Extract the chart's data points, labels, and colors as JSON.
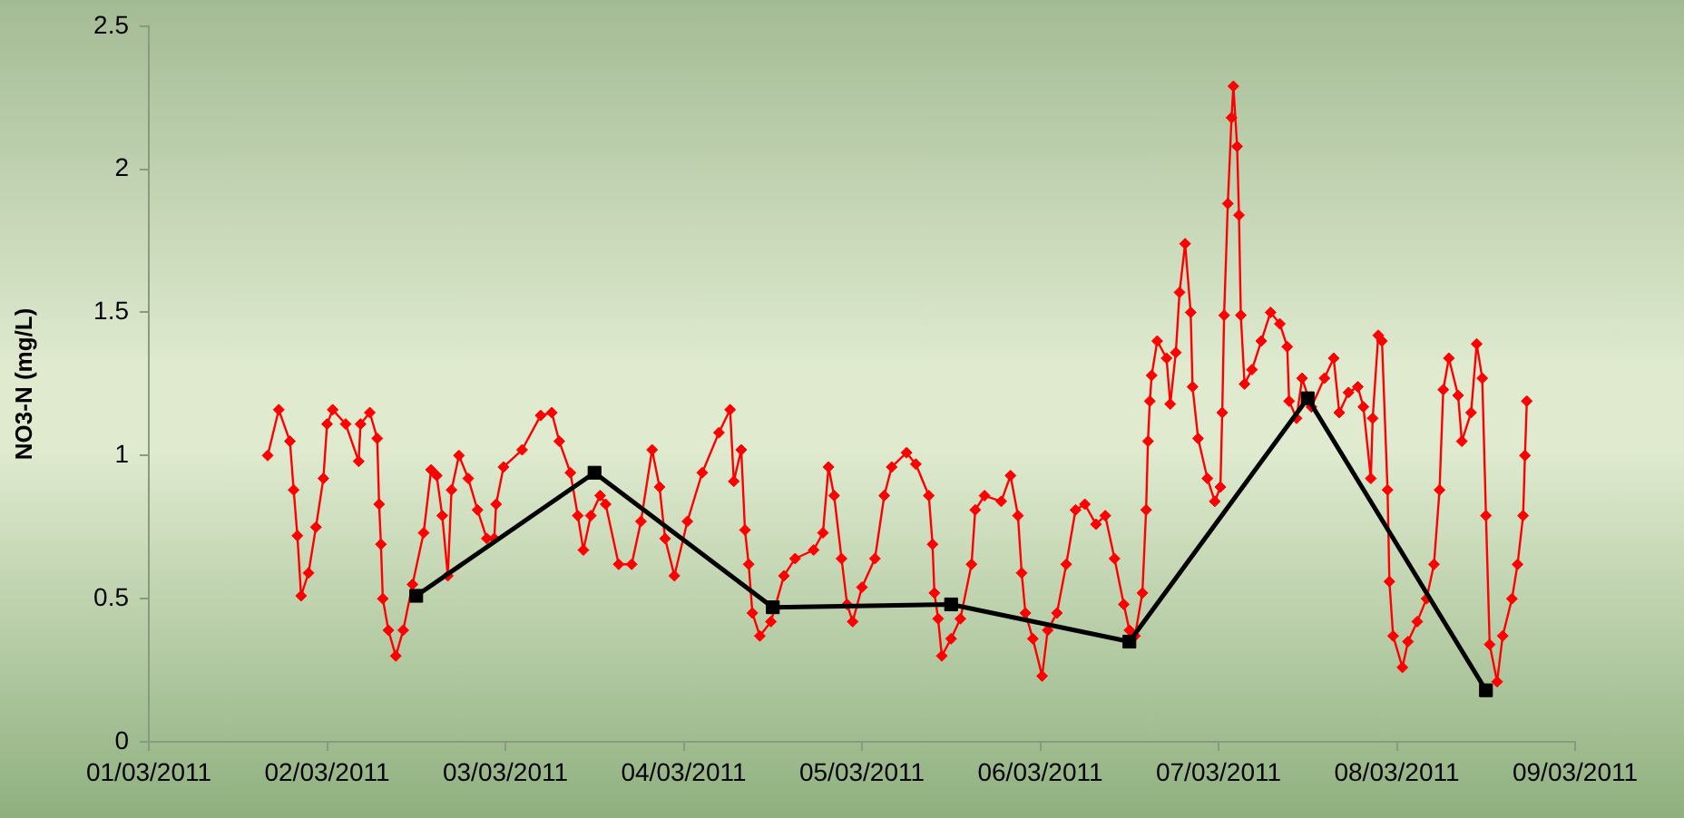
{
  "chart_data": {
    "type": "line",
    "ylabel": "NO3-N (mg/L)",
    "ylim": [
      0,
      2.5
    ],
    "yticks": [
      0,
      0.5,
      1,
      1.5,
      2,
      2.5
    ],
    "xlim": [
      "2011-03-01",
      "2011-03-09"
    ],
    "xticks": [
      {
        "value": "2011-03-01",
        "label": "01/03/2011"
      },
      {
        "value": "2011-03-02",
        "label": "02/03/2011"
      },
      {
        "value": "2011-03-03",
        "label": "03/03/2011"
      },
      {
        "value": "2011-03-04",
        "label": "04/03/2011"
      },
      {
        "value": "2011-03-05",
        "label": "05/03/2011"
      },
      {
        "value": "2011-03-06",
        "label": "06/03/2011"
      },
      {
        "value": "2011-03-07",
        "label": "07/03/2011"
      },
      {
        "value": "2011-03-08",
        "label": "08/03/2011"
      },
      {
        "value": "2011-03-09",
        "label": "09/03/2011"
      }
    ],
    "grid": false,
    "legend": false,
    "line_style": "solid",
    "series": [
      {
        "color": "#ff0000",
        "marker": "diamond",
        "x": [
          "2011-03-01T16:00",
          "2011-03-01T17:30",
          "2011-03-01T19:00",
          "2011-03-01T19:30",
          "2011-03-01T20:00",
          "2011-03-01T20:30",
          "2011-03-01T21:30",
          "2011-03-01T22:30",
          "2011-03-01T23:30",
          "2011-03-02T00:00",
          "2011-03-02T00:45",
          "2011-03-02T02:30",
          "2011-03-02T04:15",
          "2011-03-02T04:30",
          "2011-03-02T05:45",
          "2011-03-02T06:45",
          "2011-03-02T07:00",
          "2011-03-02T07:15",
          "2011-03-02T07:30",
          "2011-03-02T08:15",
          "2011-03-02T09:15",
          "2011-03-02T10:15",
          "2011-03-02T11:30",
          "2011-03-02T13:00",
          "2011-03-02T14:00",
          "2011-03-02T14:45",
          "2011-03-02T15:30",
          "2011-03-02T16:15",
          "2011-03-02T16:45",
          "2011-03-02T17:45",
          "2011-03-02T19:00",
          "2011-03-02T20:15",
          "2011-03-02T21:30",
          "2011-03-02T22:30",
          "2011-03-02T22:45",
          "2011-03-02T23:45",
          "2011-03-03T02:15",
          "2011-03-03T04:45",
          "2011-03-03T06:15",
          "2011-03-03T07:15",
          "2011-03-03T08:45",
          "2011-03-03T09:45",
          "2011-03-03T10:30",
          "2011-03-03T11:30",
          "2011-03-03T12:45",
          "2011-03-03T13:30",
          "2011-03-03T15:15",
          "2011-03-03T17:00",
          "2011-03-03T18:15",
          "2011-03-03T19:45",
          "2011-03-03T20:45",
          "2011-03-03T21:30",
          "2011-03-03T22:45",
          "2011-03-04T00:30",
          "2011-03-04T02:30",
          "2011-03-04T04:45",
          "2011-03-04T06:15",
          "2011-03-04T06:45",
          "2011-03-04T07:45",
          "2011-03-04T08:15",
          "2011-03-04T08:45",
          "2011-03-04T09:15",
          "2011-03-04T10:15",
          "2011-03-04T11:45",
          "2011-03-04T13:30",
          "2011-03-04T15:00",
          "2011-03-04T17:30",
          "2011-03-04T18:45",
          "2011-03-04T19:30",
          "2011-03-04T20:15",
          "2011-03-04T21:15",
          "2011-03-04T22:00",
          "2011-03-04T22:45",
          "2011-03-05T00:00",
          "2011-03-05T01:45",
          "2011-03-05T03:00",
          "2011-03-05T04:00",
          "2011-03-05T06:00",
          "2011-03-05T07:15",
          "2011-03-05T09:00",
          "2011-03-05T09:30",
          "2011-03-05T09:45",
          "2011-03-05T10:15",
          "2011-03-05T10:45",
          "2011-03-05T12:00",
          "2011-03-05T13:15",
          "2011-03-05T14:45",
          "2011-03-05T15:15",
          "2011-03-05T16:30",
          "2011-03-05T18:45",
          "2011-03-05T20:00",
          "2011-03-05T21:00",
          "2011-03-05T21:30",
          "2011-03-05T22:00",
          "2011-03-05T23:00",
          "2011-03-06T00:15",
          "2011-03-06T01:00",
          "2011-03-06T02:15",
          "2011-03-06T03:30",
          "2011-03-06T04:45",
          "2011-03-06T06:00",
          "2011-03-06T07:30",
          "2011-03-06T08:45",
          "2011-03-06T10:00",
          "2011-03-06T11:15",
          "2011-03-06T12:00",
          "2011-03-06T12:45",
          "2011-03-06T13:45",
          "2011-03-06T14:15",
          "2011-03-06T14:30",
          "2011-03-06T14:45",
          "2011-03-06T15:00",
          "2011-03-06T15:45",
          "2011-03-06T17:00",
          "2011-03-06T17:30",
          "2011-03-06T18:15",
          "2011-03-06T18:45",
          "2011-03-06T19:30",
          "2011-03-06T20:15",
          "2011-03-06T20:30",
          "2011-03-06T21:15",
          "2011-03-06T22:30",
          "2011-03-06T23:30",
          "2011-03-07T00:15",
          "2011-03-07T00:30",
          "2011-03-07T00:45",
          "2011-03-07T01:15",
          "2011-03-07T01:45",
          "2011-03-07T02:00",
          "2011-03-07T02:30",
          "2011-03-07T02:45",
          "2011-03-07T03:00",
          "2011-03-07T03:30",
          "2011-03-07T04:30",
          "2011-03-07T05:45",
          "2011-03-07T07:00",
          "2011-03-07T08:15",
          "2011-03-07T09:15",
          "2011-03-07T09:30",
          "2011-03-07T10:30",
          "2011-03-07T11:15",
          "2011-03-07T12:30",
          "2011-03-07T14:15",
          "2011-03-07T15:30",
          "2011-03-07T16:15",
          "2011-03-07T17:30",
          "2011-03-07T18:45",
          "2011-03-07T19:30",
          "2011-03-07T20:30",
          "2011-03-07T20:45",
          "2011-03-07T21:30",
          "2011-03-07T22:00",
          "2011-03-07T22:45",
          "2011-03-07T23:00",
          "2011-03-07T23:30",
          "2011-03-08T00:45",
          "2011-03-08T01:30",
          "2011-03-08T02:45",
          "2011-03-08T04:00",
          "2011-03-08T05:00",
          "2011-03-08T05:45",
          "2011-03-08T06:15",
          "2011-03-08T07:00",
          "2011-03-08T08:15",
          "2011-03-08T08:45",
          "2011-03-08T10:00",
          "2011-03-08T10:45",
          "2011-03-08T11:30",
          "2011-03-08T12:00",
          "2011-03-08T12:30",
          "2011-03-08T13:30",
          "2011-03-08T14:15",
          "2011-03-08T15:30",
          "2011-03-08T16:15",
          "2011-03-08T17:00",
          "2011-03-08T17:15",
          "2011-03-08T17:30"
        ],
        "values": [
          1.0,
          1.16,
          1.05,
          0.88,
          0.72,
          0.51,
          0.59,
          0.75,
          0.92,
          1.11,
          1.16,
          1.11,
          0.98,
          1.11,
          1.15,
          1.06,
          0.83,
          0.69,
          0.5,
          0.39,
          0.3,
          0.39,
          0.55,
          0.73,
          0.95,
          0.93,
          0.79,
          0.58,
          0.88,
          1.0,
          0.92,
          0.81,
          0.71,
          0.71,
          0.83,
          0.96,
          1.02,
          1.14,
          1.15,
          1.05,
          0.94,
          0.79,
          0.67,
          0.79,
          0.86,
          0.83,
          0.62,
          0.62,
          0.77,
          1.02,
          0.89,
          0.71,
          0.58,
          0.77,
          0.94,
          1.08,
          1.16,
          0.91,
          1.02,
          0.74,
          0.62,
          0.45,
          0.37,
          0.42,
          0.58,
          0.64,
          0.67,
          0.73,
          0.96,
          0.86,
          0.64,
          0.48,
          0.42,
          0.54,
          0.64,
          0.86,
          0.96,
          1.01,
          0.97,
          0.86,
          0.69,
          0.52,
          0.43,
          0.3,
          0.36,
          0.43,
          0.62,
          0.81,
          0.86,
          0.84,
          0.93,
          0.79,
          0.59,
          0.45,
          0.36,
          0.23,
          0.39,
          0.45,
          0.62,
          0.81,
          0.83,
          0.76,
          0.79,
          0.64,
          0.48,
          0.39,
          0.37,
          0.52,
          0.81,
          1.05,
          1.19,
          1.28,
          1.4,
          1.34,
          1.18,
          1.36,
          1.57,
          1.74,
          1.5,
          1.24,
          1.06,
          0.92,
          0.84,
          0.89,
          1.15,
          1.49,
          1.88,
          2.18,
          2.29,
          2.08,
          1.84,
          1.49,
          1.25,
          1.3,
          1.4,
          1.5,
          1.46,
          1.38,
          1.19,
          1.13,
          1.27,
          1.17,
          1.27,
          1.34,
          1.15,
          1.22,
          1.24,
          1.17,
          0.92,
          1.13,
          1.42,
          1.4,
          0.88,
          0.56,
          0.37,
          0.26,
          0.35,
          0.42,
          0.5,
          0.62,
          0.88,
          1.23,
          1.34,
          1.21,
          1.05,
          1.15,
          1.39,
          1.27,
          0.79,
          0.34,
          0.21,
          0.37,
          0.5,
          0.62,
          0.79,
          1.0,
          1.19
        ]
      },
      {
        "color": "#000000",
        "marker": "square",
        "x": [
          "2011-03-02T12:00",
          "2011-03-03T12:00",
          "2011-03-04T12:00",
          "2011-03-05T12:00",
          "2011-03-06T12:00",
          "2011-03-07T12:00",
          "2011-03-08T12:00"
        ],
        "values": [
          0.51,
          0.94,
          0.47,
          0.48,
          0.35,
          1.2,
          0.18
        ]
      }
    ]
  }
}
